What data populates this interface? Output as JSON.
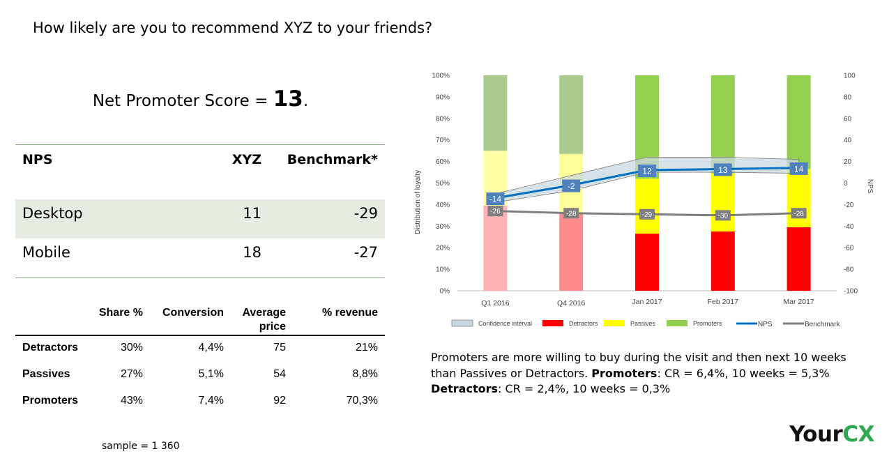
{
  "question": "How likely are you to recommend XYZ to your friends?",
  "score": {
    "prefix": "Net Promoter Score = ",
    "value": "13",
    "suffix": "."
  },
  "nps_table": {
    "headers": [
      "NPS",
      "XYZ",
      "Benchmark*"
    ],
    "rows": [
      {
        "label": "Desktop",
        "xyz": "11",
        "benchmark": "-29"
      },
      {
        "label": "Mobile",
        "xyz": "18",
        "benchmark": "-27"
      }
    ]
  },
  "segment_table": {
    "headers": [
      "Share %",
      "Conversion",
      "Average price",
      "% revenue"
    ],
    "rows": [
      {
        "label": "Detractors",
        "share": "30%",
        "conversion": "4,4%",
        "avg_price": "75",
        "revenue": "21%"
      },
      {
        "label": "Passives",
        "share": "27%",
        "conversion": "5,1%",
        "avg_price": "54",
        "revenue": "8,8%"
      },
      {
        "label": "Promoters",
        "share": "43%",
        "conversion": "7,4%",
        "avg_price": "92",
        "revenue": "70,3%"
      }
    ]
  },
  "sample": "sample = 1 360",
  "insight": {
    "text1": "Promoters are more willing to buy during the visit and then next 10 weeks than Passives or Detractors. ",
    "bold1": "Promoters",
    "text2": ":  CR = 6,4%, 10 weeks = 5,3%  ",
    "bold2": "Detractors",
    "text3": ": CR = 2,4%, 10 weeks = 0,3%"
  },
  "logo": {
    "part1": "Your",
    "part2": "CX",
    "color1": "#111111",
    "color2": "#2fa84f"
  },
  "chart_data": {
    "type": "bar",
    "stacked": true,
    "categories": [
      "Q1 2016",
      "Q4 2016",
      "Jan 2017",
      "Feb 2017",
      "Mar 2017"
    ],
    "ylabel": "Distribution of loyalty",
    "y2label": "NPS",
    "ylim": [
      0,
      100
    ],
    "y2lim": [
      -100,
      100
    ],
    "yticks": [
      "0%",
      "10%",
      "20%",
      "30%",
      "40%",
      "50%",
      "60%",
      "70%",
      "80%",
      "90%",
      "100%"
    ],
    "y2ticks": [
      "-100",
      "-80",
      "-60",
      "-40",
      "-20",
      "0",
      "20",
      "40",
      "60",
      "80",
      "100"
    ],
    "series": [
      {
        "name": "Detractors",
        "values": [
          39.5,
          36,
          26.5,
          27.5,
          29.5
        ],
        "colors": [
          "#ffb3b3",
          "#ff8c8c",
          "#ff0000",
          "#ff0000",
          "#ff0000"
        ]
      },
      {
        "name": "Passives",
        "values": [
          25.5,
          27.5,
          25.5,
          27,
          27
        ],
        "colors": [
          "#ffffa8",
          "#ffff99",
          "#ffff00",
          "#ffff00",
          "#ffff00"
        ]
      },
      {
        "name": "Promoters",
        "values": [
          35,
          36.5,
          48,
          45.5,
          43.5
        ],
        "colors": [
          "#abcc8e",
          "#abcc8e",
          "#92d050",
          "#92d050",
          "#92d050"
        ]
      }
    ],
    "lines": [
      {
        "name": "NPS",
        "axis": "right",
        "values": [
          -14,
          -2,
          12,
          13,
          14
        ],
        "labels": [
          "-14",
          "-2",
          "12",
          "13",
          "14"
        ],
        "color": "#0070c0",
        "label_bg": "#4f81bd"
      },
      {
        "name": "Benchmark",
        "axis": "right",
        "values": [
          -26,
          -28,
          -29,
          -30,
          -28
        ],
        "labels": [
          "-26",
          "-28",
          "-29",
          "-30",
          "-28"
        ],
        "color": "#7f7f7f",
        "label_bg": "#7f7f7f"
      }
    ],
    "confidence_interval": {
      "name": "Confidence interval",
      "upper": [
        -10,
        7,
        24,
        24,
        22
      ],
      "lower": [
        -18,
        -7,
        10,
        10,
        9
      ],
      "color": "#c9d7e0"
    },
    "legend": [
      "Confidence interval",
      "Detractors",
      "Passives",
      "Promoters",
      "NPS",
      "Benchmark"
    ],
    "legend_position": "bottom",
    "grid": false
  }
}
